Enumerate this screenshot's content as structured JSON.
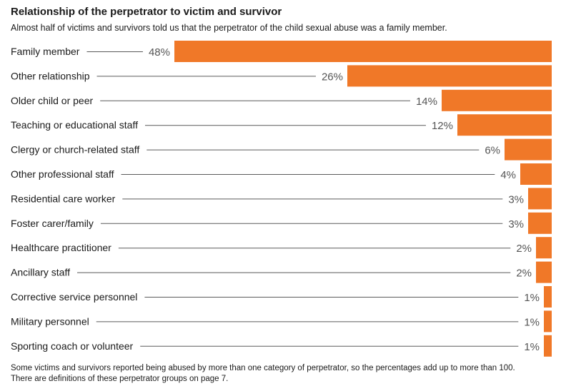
{
  "colors": {
    "bar": "#f07828",
    "leader": "#5a5a5a",
    "text": "#1a1a1a",
    "value": "#555555"
  },
  "chart_data": {
    "type": "bar",
    "orientation": "horizontal",
    "title": "Relationship of the perpetrator to victim and survivor",
    "subtitle": "Almost half of victims and survivors told us that the perpetrator of the child sexual abuse was a family member.",
    "categories": [
      "Family member",
      "Other relationship",
      "Older child or peer",
      "Teaching or educational staff",
      "Clergy or church-related staff",
      "Other professional staff",
      "Residential care worker",
      "Foster carer/family",
      "Healthcare practitioner",
      "Ancillary staff",
      "Corrective service personnel",
      "Military personnel",
      "Sporting coach or volunteer"
    ],
    "values": [
      48,
      26,
      14,
      12,
      6,
      4,
      3,
      3,
      2,
      2,
      1,
      1,
      1
    ],
    "value_labels": [
      "48%",
      "26%",
      "14%",
      "12%",
      "6%",
      "4%",
      "3%",
      "3%",
      "2%",
      "2%",
      "1%",
      "1%",
      "1%"
    ],
    "unit": "%",
    "bars_align": "right",
    "grid": false,
    "legend": "none",
    "notes": [
      "Some victims and survivors reported being abused by more than one category of perpetrator, so the percentages add up to more than 100.",
      "There are definitions of these perpetrator groups on page 7."
    ]
  }
}
